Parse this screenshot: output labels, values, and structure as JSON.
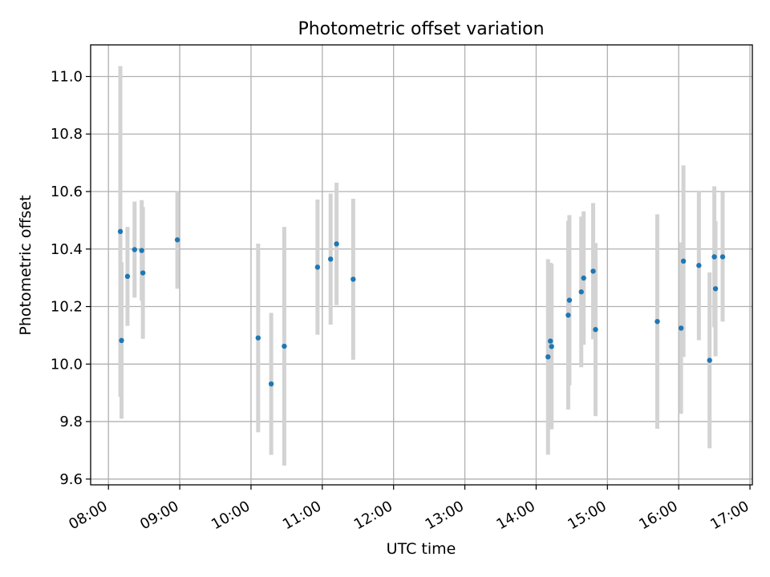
{
  "chart_data": {
    "type": "scatter",
    "title": "Photometric offset variation",
    "xlabel": "UTC time",
    "ylabel": "Photometric offset",
    "xlim": [
      "07:45",
      "17:02"
    ],
    "ylim": [
      9.58,
      11.11
    ],
    "x_ticks": [
      "08:00",
      "09:00",
      "10:00",
      "11:00",
      "12:00",
      "13:00",
      "14:00",
      "15:00",
      "16:00",
      "17:00"
    ],
    "y_ticks": [
      "9.6",
      "9.8",
      "10.0",
      "10.2",
      "10.4",
      "10.6",
      "10.8",
      "11.0"
    ],
    "grid": true,
    "colors": {
      "point": "#1f77b4",
      "errorbar": "#d3d3d3",
      "grid": "#b0b0b0"
    },
    "points": [
      {
        "x": "08:10",
        "y": 10.461,
        "err": 0.575
      },
      {
        "x": "08:11",
        "y": 10.082,
        "err": 0.272
      },
      {
        "x": "08:16",
        "y": 10.305,
        "err": 0.172
      },
      {
        "x": "08:22",
        "y": 10.398,
        "err": 0.167
      },
      {
        "x": "08:28",
        "y": 10.395,
        "err": 0.175
      },
      {
        "x": "08:29",
        "y": 10.317,
        "err": 0.229
      },
      {
        "x": "08:58",
        "y": 10.432,
        "err": 0.17
      },
      {
        "x": "10:06",
        "y": 10.091,
        "err": 0.328
      },
      {
        "x": "10:17",
        "y": 9.931,
        "err": 0.247
      },
      {
        "x": "10:28",
        "y": 10.062,
        "err": 0.415
      },
      {
        "x": "10:56",
        "y": 10.337,
        "err": 0.235
      },
      {
        "x": "11:07",
        "y": 10.365,
        "err": 0.228
      },
      {
        "x": "11:12",
        "y": 10.418,
        "err": 0.213
      },
      {
        "x": "11:26",
        "y": 10.295,
        "err": 0.28
      },
      {
        "x": "14:10",
        "y": 10.025,
        "err": 0.34
      },
      {
        "x": "14:12",
        "y": 10.08,
        "err": 0.272
      },
      {
        "x": "14:13",
        "y": 10.061,
        "err": 0.288
      },
      {
        "x": "14:27",
        "y": 10.17,
        "err": 0.328
      },
      {
        "x": "14:28",
        "y": 10.222,
        "err": 0.296
      },
      {
        "x": "14:38",
        "y": 10.251,
        "err": 0.262
      },
      {
        "x": "14:40",
        "y": 10.299,
        "err": 0.232
      },
      {
        "x": "14:48",
        "y": 10.323,
        "err": 0.237
      },
      {
        "x": "14:50",
        "y": 10.12,
        "err": 0.301
      },
      {
        "x": "15:42",
        "y": 10.148,
        "err": 0.373
      },
      {
        "x": "16:02",
        "y": 10.125,
        "err": 0.298
      },
      {
        "x": "16:04",
        "y": 10.358,
        "err": 0.333
      },
      {
        "x": "16:17",
        "y": 10.343,
        "err": 0.26
      },
      {
        "x": "16:26",
        "y": 10.013,
        "err": 0.306
      },
      {
        "x": "16:30",
        "y": 10.373,
        "err": 0.245
      },
      {
        "x": "16:31",
        "y": 10.262,
        "err": 0.235
      },
      {
        "x": "16:37",
        "y": 10.373,
        "err": 0.225
      }
    ]
  }
}
